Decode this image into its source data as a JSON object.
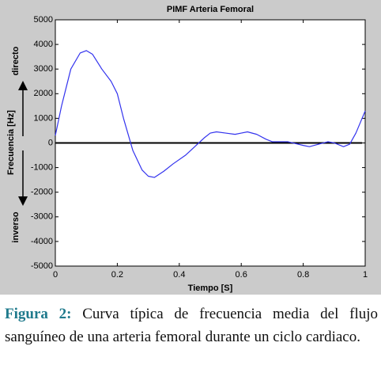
{
  "chart_data": {
    "type": "line",
    "title": "PIMF Arteria Femoral",
    "x_label": "Tiempo [S]",
    "y_label": "Frecuencia [Hz]",
    "annotations": [
      "directo",
      "inverso"
    ],
    "x": [
      0,
      0.02,
      0.05,
      0.08,
      0.1,
      0.12,
      0.15,
      0.18,
      0.2,
      0.22,
      0.25,
      0.28,
      0.3,
      0.32,
      0.35,
      0.38,
      0.42,
      0.45,
      0.48,
      0.5,
      0.52,
      0.55,
      0.58,
      0.6,
      0.62,
      0.65,
      0.68,
      0.7,
      0.75,
      0.8,
      0.82,
      0.85,
      0.88,
      0.9,
      0.93,
      0.95,
      0.97,
      1.0
    ],
    "series": [
      {
        "name": "PIMF",
        "color": "#3333ee",
        "values": [
          300,
          1500,
          3000,
          3650,
          3750,
          3600,
          3000,
          2500,
          2000,
          1000,
          -300,
          -1100,
          -1350,
          -1400,
          -1150,
          -850,
          -500,
          -150,
          200,
          400,
          450,
          400,
          350,
          400,
          450,
          350,
          150,
          50,
          50,
          -100,
          -150,
          -50,
          50,
          0,
          -150,
          -50,
          400,
          1300
        ]
      }
    ],
    "xlim": [
      0,
      1
    ],
    "xticks": [
      0,
      0.2,
      0.4,
      0.6,
      0.8,
      1
    ],
    "ylim": [
      -5000,
      5000
    ],
    "yticks": [
      -5000,
      -4000,
      -3000,
      -2000,
      -1000,
      0,
      1000,
      2000,
      3000,
      4000,
      5000
    ]
  },
  "caption": {
    "label": "Figura 2:",
    "text": "Curva típica de frecuencia media del flujo sanguíneo de una arteria femoral durante un ciclo cardiaco."
  }
}
